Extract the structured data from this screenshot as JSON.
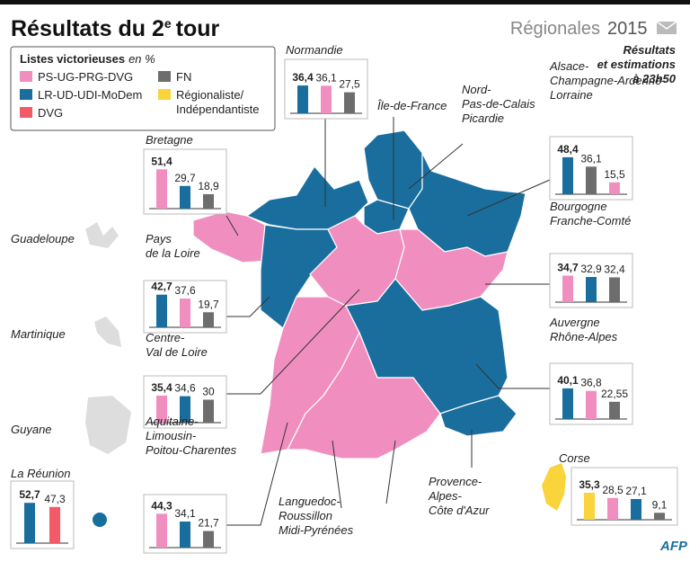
{
  "header": {
    "title": "Résultats du 2",
    "title_sup": "e",
    "title_end": "tour",
    "series_name": "Régionales",
    "year": "2015",
    "note": [
      "Résultats",
      "et estimations",
      "à 23h50"
    ],
    "source": "AFP"
  },
  "legend": {
    "title": "Listes victorieuses",
    "unit": "en %",
    "items": [
      {
        "name": "PS-UG-PRG-DVG",
        "color": "#f08fbf"
      },
      {
        "name": "LR-UD-UDI-MoDem",
        "color": "#1a6e9e"
      },
      {
        "name": "DVG",
        "color": "#f25a67"
      },
      {
        "name": "FN",
        "color": "#6d6d6d"
      },
      {
        "name": "Régionaliste/ Indépendantiste",
        "color": "#f9d43a"
      }
    ]
  },
  "map_labels": [
    [
      "Île-de-France"
    ],
    [
      "Nord-",
      "Pas-de-Calais",
      "Picardie"
    ],
    [
      "Languedoc-",
      "Roussillon",
      "Midi-Pyrénées"
    ],
    [
      "Provence-",
      "Alpes-",
      "Côte d'Azur"
    ],
    [
      "Guadeloupe"
    ],
    [
      "Martinique"
    ],
    [
      "Guyane"
    ]
  ],
  "chart_data": [
    {
      "type": "bar",
      "title": [
        "Normandie"
      ],
      "values": [
        36.4,
        36.1,
        27.5
      ],
      "value_labels": [
        "36,4",
        "36,1",
        "27,5"
      ],
      "colors": [
        "#1a6e9e",
        "#f08fbf",
        "#6d6d6d"
      ]
    },
    {
      "type": "bar",
      "title": [
        "Bretagne"
      ],
      "values": [
        51.4,
        29.7,
        18.9
      ],
      "value_labels": [
        "51,4",
        "29,7",
        "18,9"
      ],
      "colors": [
        "#f08fbf",
        "#1a6e9e",
        "#6d6d6d"
      ]
    },
    {
      "type": "bar",
      "title": [
        "Pays",
        "de la Loire"
      ],
      "values": [
        42.7,
        37.6,
        19.7
      ],
      "value_labels": [
        "42,7",
        "37,6",
        "19,7"
      ],
      "colors": [
        "#1a6e9e",
        "#f08fbf",
        "#6d6d6d"
      ]
    },
    {
      "type": "bar",
      "title": [
        "Centre-",
        "Val de Loire"
      ],
      "values": [
        35.4,
        34.6,
        30
      ],
      "value_labels": [
        "35,4",
        "34,6",
        "30"
      ],
      "colors": [
        "#f08fbf",
        "#1a6e9e",
        "#6d6d6d"
      ]
    },
    {
      "type": "bar",
      "title": [
        "Aquitaine-",
        "Limousin-",
        "Poitou-Charentes"
      ],
      "values": [
        44.3,
        34.1,
        21.7
      ],
      "value_labels": [
        "44,3",
        "34,1",
        "21,7"
      ],
      "colors": [
        "#f08fbf",
        "#1a6e9e",
        "#6d6d6d"
      ]
    },
    {
      "type": "bar",
      "title": [
        "Alsace-",
        "Champagne-Ardenne-",
        "Lorraine"
      ],
      "values": [
        48.4,
        36.1,
        15.5
      ],
      "value_labels": [
        "48,4",
        "36,1",
        "15,5"
      ],
      "colors": [
        "#1a6e9e",
        "#6d6d6d",
        "#f08fbf"
      ]
    },
    {
      "type": "bar",
      "title": [
        "Bourgogne",
        "Franche-Comté"
      ],
      "values": [
        34.7,
        32.9,
        32.4
      ],
      "value_labels": [
        "34,7",
        "32,9",
        "32,4"
      ],
      "colors": [
        "#f08fbf",
        "#1a6e9e",
        "#6d6d6d"
      ]
    },
    {
      "type": "bar",
      "title": [
        "Auvergne",
        "Rhône-Alpes"
      ],
      "values": [
        40.1,
        36.8,
        22.55
      ],
      "value_labels": [
        "40,1",
        "36,8",
        "22,55"
      ],
      "colors": [
        "#1a6e9e",
        "#f08fbf",
        "#6d6d6d"
      ]
    },
    {
      "type": "bar",
      "title": [
        "Corse"
      ],
      "values": [
        35.3,
        28.5,
        27.1,
        9.1
      ],
      "value_labels": [
        "35,3",
        "28,5",
        "27,1",
        "9,1"
      ],
      "colors": [
        "#f9d43a",
        "#f08fbf",
        "#1a6e9e",
        "#6d6d6d"
      ]
    },
    {
      "type": "bar",
      "title": [
        "La Réunion"
      ],
      "values": [
        52.7,
        47.3
      ],
      "value_labels": [
        "52,7",
        "47,3"
      ],
      "colors": [
        "#1a6e9e",
        "#f25a67"
      ]
    }
  ]
}
